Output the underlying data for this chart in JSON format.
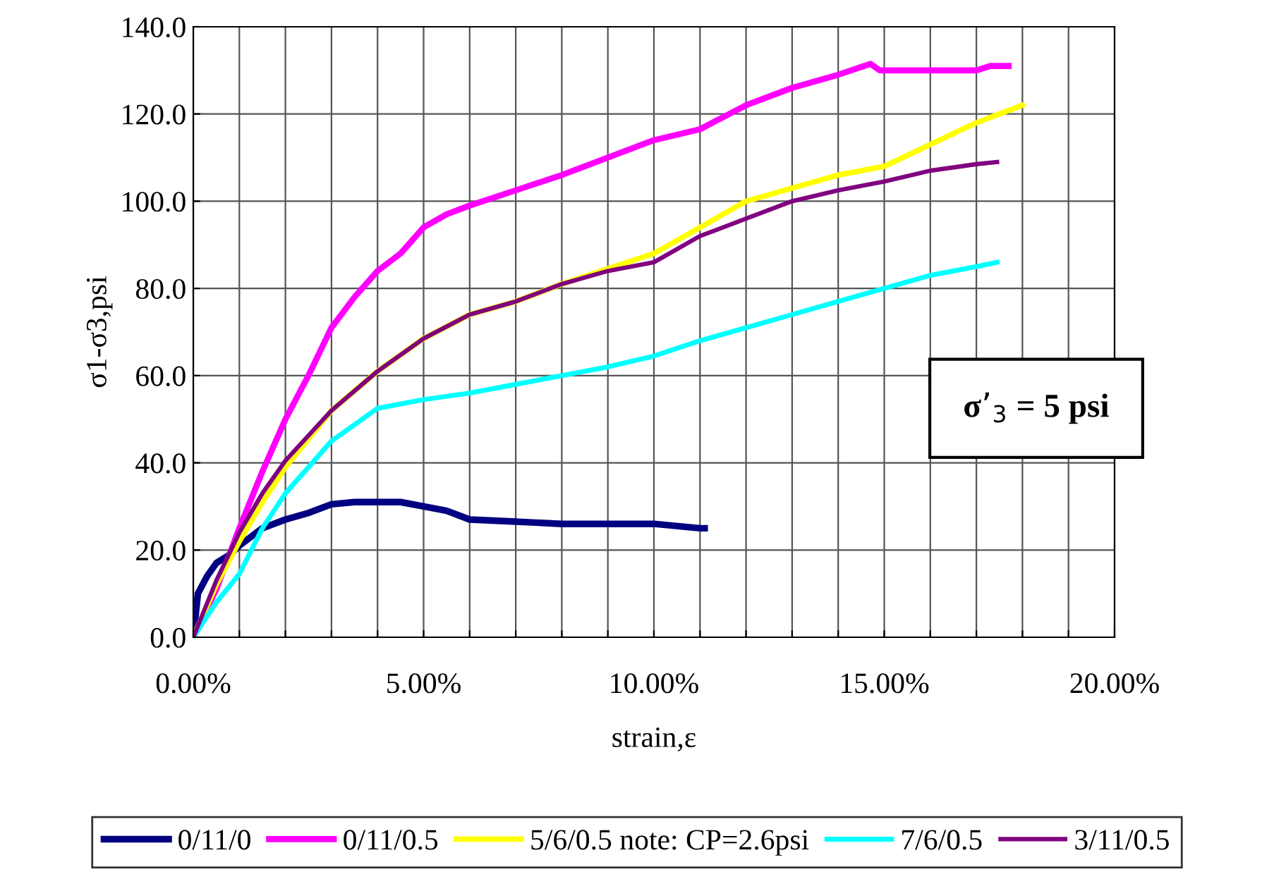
{
  "chart_data": {
    "type": "line",
    "xlabel": "strain,ε",
    "ylabel": "σ1-σ3,psi",
    "annotations": [
      "σ’$_{3}$ = 5 psi"
    ],
    "xlim": [
      0,
      20
    ],
    "ylim": [
      0,
      140
    ],
    "xticks": [
      {
        "value": 0,
        "label": "0.00%"
      },
      {
        "value": 1,
        "label": null
      },
      {
        "value": 2,
        "label": null
      },
      {
        "value": 3,
        "label": null
      },
      {
        "value": 4,
        "label": null
      },
      {
        "value": 5,
        "label": "5.00%"
      },
      {
        "value": 6,
        "label": null
      },
      {
        "value": 7,
        "label": null
      },
      {
        "value": 8,
        "label": null
      },
      {
        "value": 9,
        "label": null
      },
      {
        "value": 10,
        "label": "10.00%"
      },
      {
        "value": 11,
        "label": null
      },
      {
        "value": 12,
        "label": null
      },
      {
        "value": 13,
        "label": null
      },
      {
        "value": 14,
        "label": null
      },
      {
        "value": 15,
        "label": "15.00%"
      },
      {
        "value": 16,
        "label": null
      },
      {
        "value": 17,
        "label": null
      },
      {
        "value": 18,
        "label": null
      },
      {
        "value": 19,
        "label": null
      },
      {
        "value": 20,
        "label": "20.00%"
      }
    ],
    "yticks": [
      {
        "value": 0,
        "label": "0.0"
      },
      {
        "value": 20,
        "label": "20.0"
      },
      {
        "value": 40,
        "label": "40.0"
      },
      {
        "value": 60,
        "label": "60.0"
      },
      {
        "value": 80,
        "label": "80.0"
      },
      {
        "value": 100,
        "label": "100.0"
      },
      {
        "value": 120,
        "label": "120.0"
      },
      {
        "value": 140,
        "label": "140.0"
      }
    ],
    "grid": true,
    "legend": "bottom",
    "marker": "none",
    "line_style": "solid",
    "series": [
      {
        "name": "0/11/0",
        "color": "#000080",
        "x": [
          0,
          0.1,
          0.3,
          0.5,
          0.8,
          1,
          1.5,
          2,
          2.5,
          3,
          3.5,
          4,
          4.5,
          5,
          5.5,
          6,
          7,
          8,
          9,
          10,
          11,
          11.1
        ],
        "values": [
          0,
          10,
          14,
          17,
          19,
          21,
          25,
          27,
          28.5,
          30.5,
          31,
          31,
          31,
          30,
          29,
          27,
          26.5,
          26,
          26,
          26,
          25,
          25
        ]
      },
      {
        "name": "0/11/0.5",
        "color": "#ff00ff",
        "x": [
          0,
          0.5,
          1,
          1.5,
          2,
          2.5,
          3,
          3.5,
          4,
          4.5,
          5,
          5.5,
          6,
          7,
          8,
          9,
          10,
          11,
          12,
          13,
          14,
          14.7,
          14.9,
          16,
          17,
          17.3,
          17.7
        ],
        "values": [
          0,
          11,
          25,
          38,
          50,
          60,
          71,
          78,
          84,
          88,
          94,
          97,
          99,
          102.5,
          106,
          110,
          114,
          116.5,
          122,
          126,
          129,
          131.5,
          130,
          130,
          130,
          131,
          131
        ]
      },
      {
        "name": "5/6/0.5 note: CP=2.6psi",
        "color": "#ffff00",
        "x": [
          0,
          0.5,
          1,
          1.5,
          2,
          3,
          4,
          5,
          6,
          7,
          8,
          9,
          10,
          11,
          12,
          13,
          14,
          15,
          16,
          17,
          18
        ],
        "values": [
          0,
          12,
          22,
          31,
          39,
          52,
          61,
          68.5,
          74,
          77,
          81,
          84.5,
          88,
          94,
          100,
          103,
          106,
          108,
          113,
          118,
          122
        ]
      },
      {
        "name": "7/6/0.5",
        "color": "#00ffff",
        "x": [
          0,
          0.5,
          1,
          1.5,
          2,
          3,
          4,
          5,
          6,
          7,
          8,
          9,
          10,
          11,
          12,
          13,
          14,
          15,
          16,
          17,
          17.45
        ],
        "values": [
          0,
          8,
          14.5,
          25,
          33,
          45,
          52.5,
          54.5,
          56,
          58,
          60,
          62,
          64.5,
          68,
          71,
          74,
          77,
          80,
          83,
          85,
          86
        ]
      },
      {
        "name": "3/11/0.5",
        "color": "#800080",
        "x": [
          0,
          0.5,
          1,
          1.5,
          2,
          3,
          4,
          5,
          6,
          7,
          8,
          9,
          10,
          11,
          12,
          13,
          14,
          15,
          16,
          17,
          17.45
        ],
        "values": [
          0,
          13,
          24,
          33,
          40.5,
          52,
          61,
          68.5,
          74,
          77,
          81,
          84,
          86,
          92,
          96,
          100,
          102.5,
          104.5,
          107,
          108.5,
          109
        ]
      }
    ]
  }
}
